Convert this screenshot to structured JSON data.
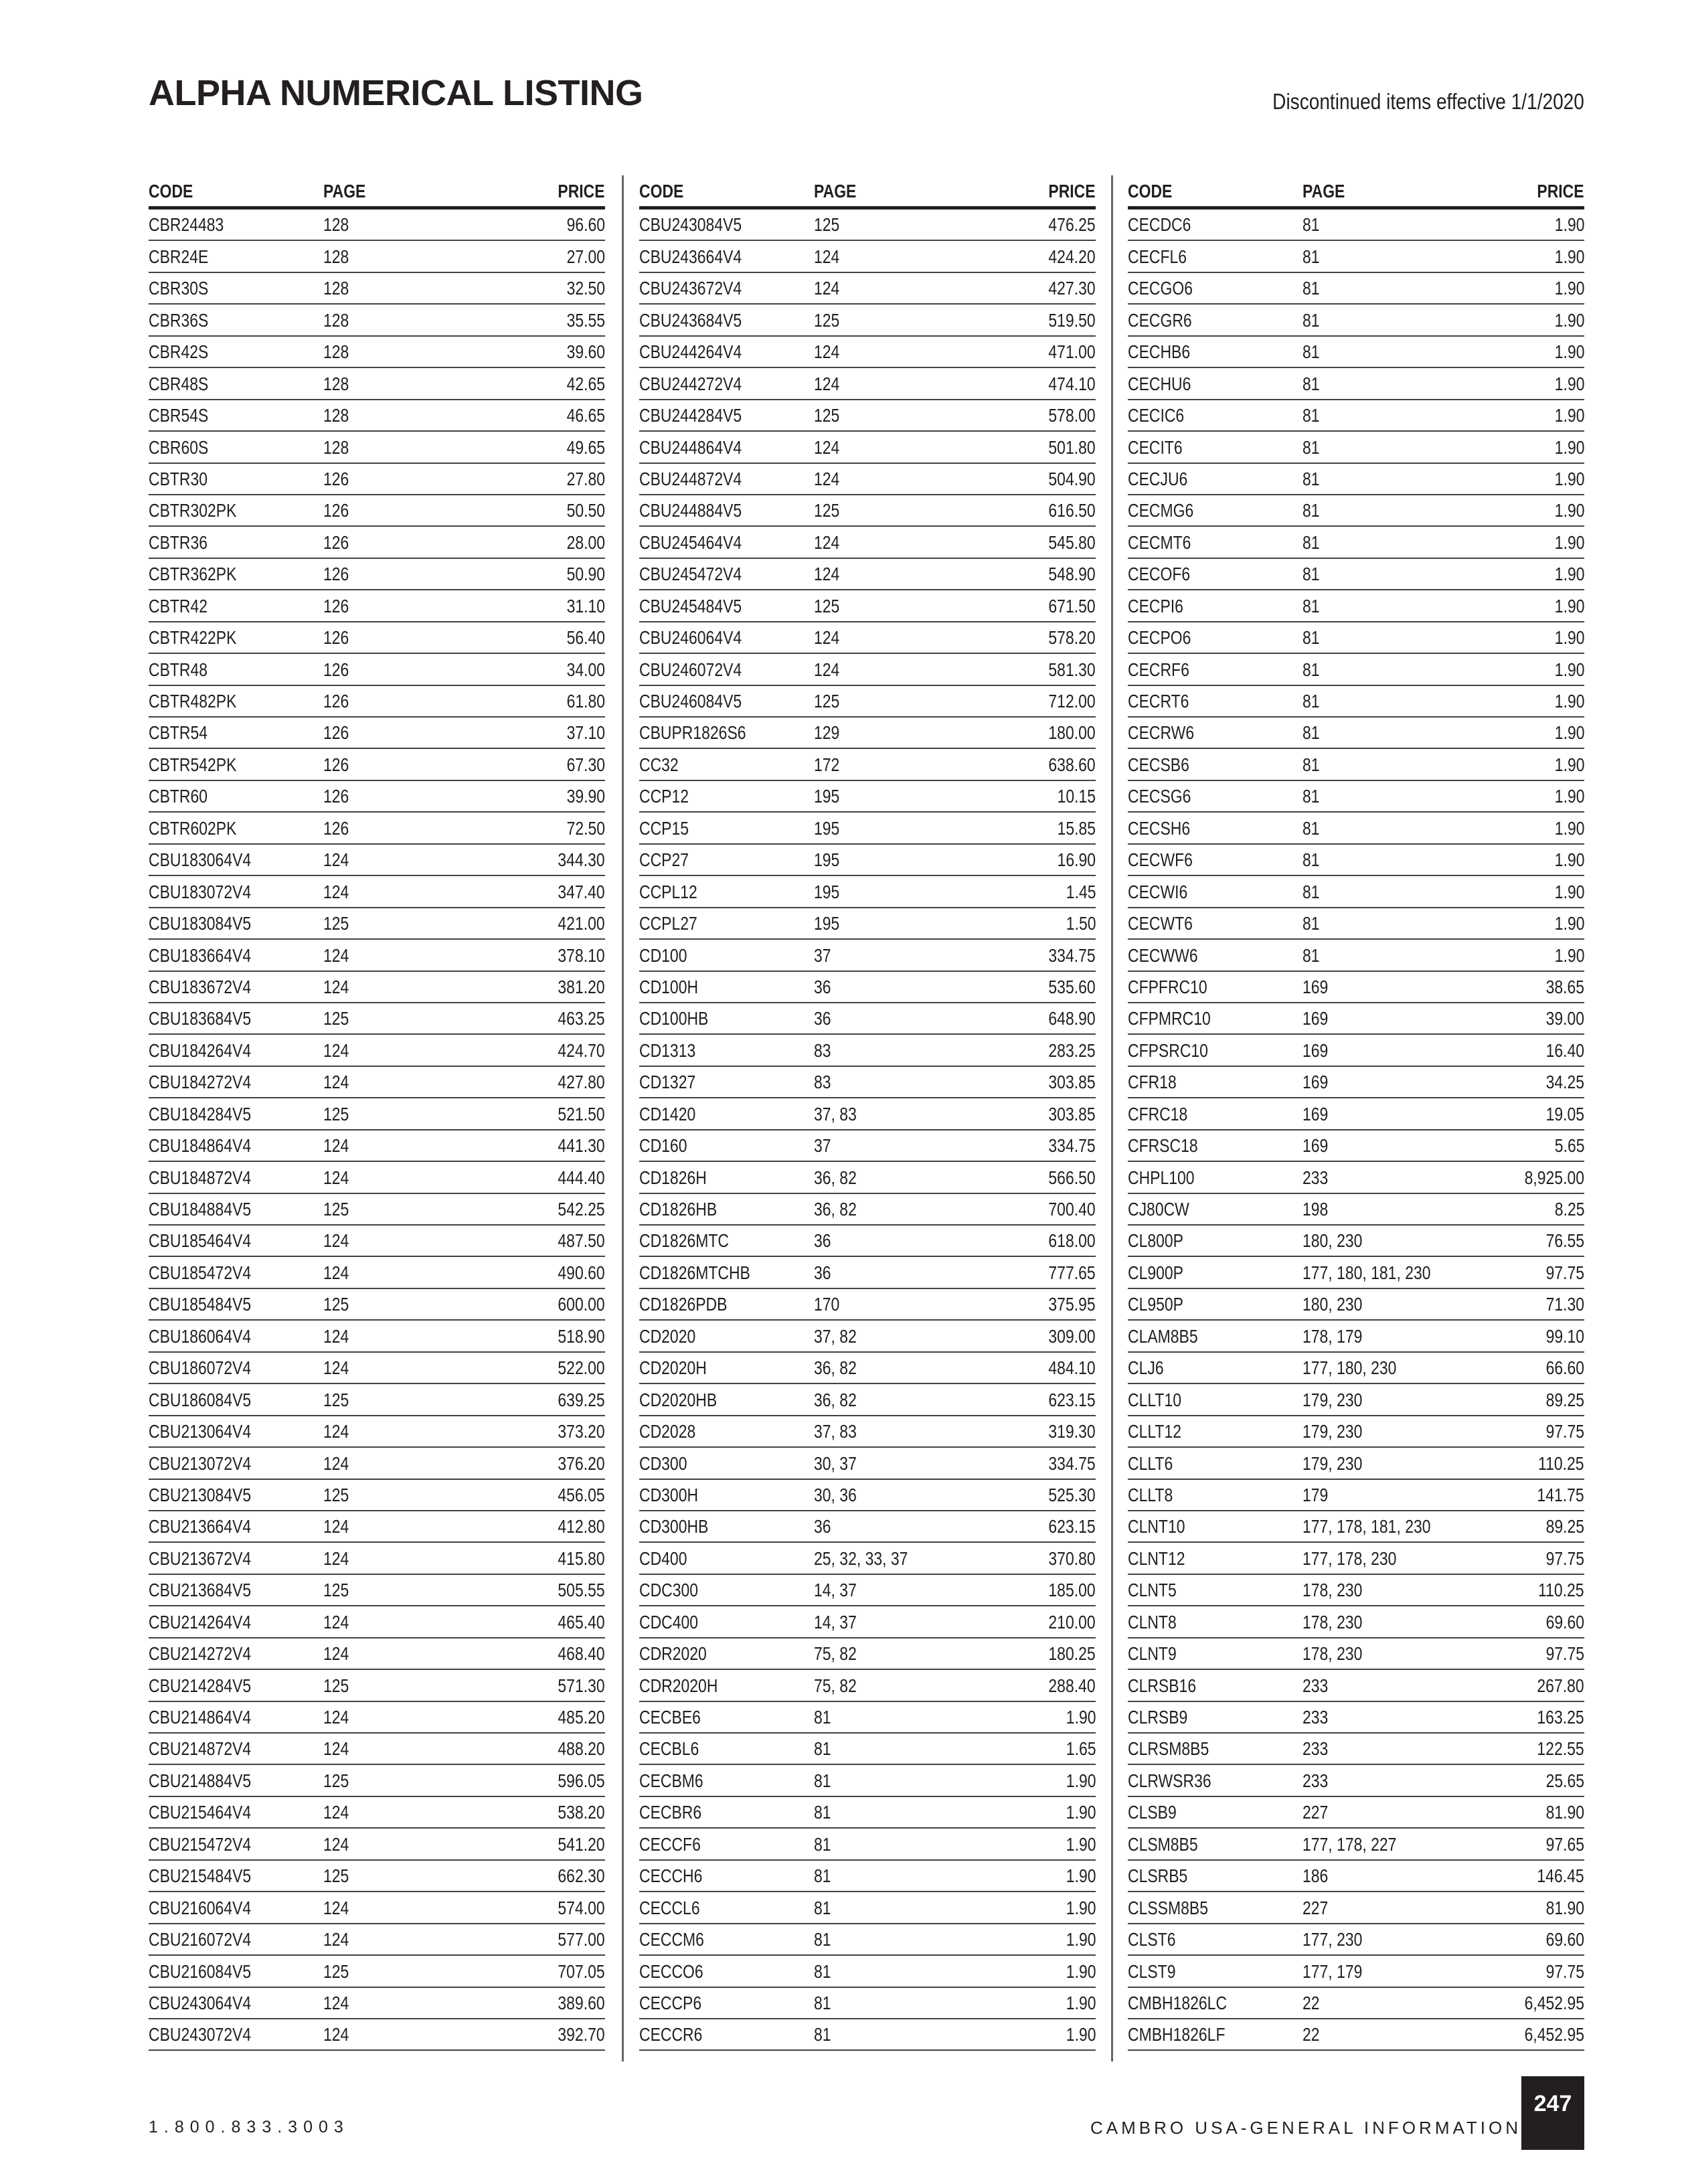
{
  "header": {
    "title": "ALPHA NUMERICAL LISTING",
    "subtitle": "Discontinued items effective 1/1/2020"
  },
  "table_headers": {
    "code": "CODE",
    "page": "PAGE",
    "price": "PRICE"
  },
  "columns": [
    [
      [
        "CBR24483",
        "128",
        "96.60"
      ],
      [
        "CBR24E",
        "128",
        "27.00"
      ],
      [
        "CBR30S",
        "128",
        "32.50"
      ],
      [
        "CBR36S",
        "128",
        "35.55"
      ],
      [
        "CBR42S",
        "128",
        "39.60"
      ],
      [
        "CBR48S",
        "128",
        "42.65"
      ],
      [
        "CBR54S",
        "128",
        "46.65"
      ],
      [
        "CBR60S",
        "128",
        "49.65"
      ],
      [
        "CBTR30",
        "126",
        "27.80"
      ],
      [
        "CBTR302PK",
        "126",
        "50.50"
      ],
      [
        "CBTR36",
        "126",
        "28.00"
      ],
      [
        "CBTR362PK",
        "126",
        "50.90"
      ],
      [
        "CBTR42",
        "126",
        "31.10"
      ],
      [
        "CBTR422PK",
        "126",
        "56.40"
      ],
      [
        "CBTR48",
        "126",
        "34.00"
      ],
      [
        "CBTR482PK",
        "126",
        "61.80"
      ],
      [
        "CBTR54",
        "126",
        "37.10"
      ],
      [
        "CBTR542PK",
        "126",
        "67.30"
      ],
      [
        "CBTR60",
        "126",
        "39.90"
      ],
      [
        "CBTR602PK",
        "126",
        "72.50"
      ],
      [
        "CBU183064V4",
        "124",
        "344.30"
      ],
      [
        "CBU183072V4",
        "124",
        "347.40"
      ],
      [
        "CBU183084V5",
        "125",
        "421.00"
      ],
      [
        "CBU183664V4",
        "124",
        "378.10"
      ],
      [
        "CBU183672V4",
        "124",
        "381.20"
      ],
      [
        "CBU183684V5",
        "125",
        "463.25"
      ],
      [
        "CBU184264V4",
        "124",
        "424.70"
      ],
      [
        "CBU184272V4",
        "124",
        "427.80"
      ],
      [
        "CBU184284V5",
        "125",
        "521.50"
      ],
      [
        "CBU184864V4",
        "124",
        "441.30"
      ],
      [
        "CBU184872V4",
        "124",
        "444.40"
      ],
      [
        "CBU184884V5",
        "125",
        "542.25"
      ],
      [
        "CBU185464V4",
        "124",
        "487.50"
      ],
      [
        "CBU185472V4",
        "124",
        "490.60"
      ],
      [
        "CBU185484V5",
        "125",
        "600.00"
      ],
      [
        "CBU186064V4",
        "124",
        "518.90"
      ],
      [
        "CBU186072V4",
        "124",
        "522.00"
      ],
      [
        "CBU186084V5",
        "125",
        "639.25"
      ],
      [
        "CBU213064V4",
        "124",
        "373.20"
      ],
      [
        "CBU213072V4",
        "124",
        "376.20"
      ],
      [
        "CBU213084V5",
        "125",
        "456.05"
      ],
      [
        "CBU213664V4",
        "124",
        "412.80"
      ],
      [
        "CBU213672V4",
        "124",
        "415.80"
      ],
      [
        "CBU213684V5",
        "125",
        "505.55"
      ],
      [
        "CBU214264V4",
        "124",
        "465.40"
      ],
      [
        "CBU214272V4",
        "124",
        "468.40"
      ],
      [
        "CBU214284V5",
        "125",
        "571.30"
      ],
      [
        "CBU214864V4",
        "124",
        "485.20"
      ],
      [
        "CBU214872V4",
        "124",
        "488.20"
      ],
      [
        "CBU214884V5",
        "125",
        "596.05"
      ],
      [
        "CBU215464V4",
        "124",
        "538.20"
      ],
      [
        "CBU215472V4",
        "124",
        "541.20"
      ],
      [
        "CBU215484V5",
        "125",
        "662.30"
      ],
      [
        "CBU216064V4",
        "124",
        "574.00"
      ],
      [
        "CBU216072V4",
        "124",
        "577.00"
      ],
      [
        "CBU216084V5",
        "125",
        "707.05"
      ],
      [
        "CBU243064V4",
        "124",
        "389.60"
      ],
      [
        "CBU243072V4",
        "124",
        "392.70"
      ]
    ],
    [
      [
        "CBU243084V5",
        "125",
        "476.25"
      ],
      [
        "CBU243664V4",
        "124",
        "424.20"
      ],
      [
        "CBU243672V4",
        "124",
        "427.30"
      ],
      [
        "CBU243684V5",
        "125",
        "519.50"
      ],
      [
        "CBU244264V4",
        "124",
        "471.00"
      ],
      [
        "CBU244272V4",
        "124",
        "474.10"
      ],
      [
        "CBU244284V5",
        "125",
        "578.00"
      ],
      [
        "CBU244864V4",
        "124",
        "501.80"
      ],
      [
        "CBU244872V4",
        "124",
        "504.90"
      ],
      [
        "CBU244884V5",
        "125",
        "616.50"
      ],
      [
        "CBU245464V4",
        "124",
        "545.80"
      ],
      [
        "CBU245472V4",
        "124",
        "548.90"
      ],
      [
        "CBU245484V5",
        "125",
        "671.50"
      ],
      [
        "CBU246064V4",
        "124",
        "578.20"
      ],
      [
        "CBU246072V4",
        "124",
        "581.30"
      ],
      [
        "CBU246084V5",
        "125",
        "712.00"
      ],
      [
        "CBUPR1826S6",
        "129",
        "180.00"
      ],
      [
        "CC32",
        "172",
        "638.60"
      ],
      [
        "CCP12",
        "195",
        "10.15"
      ],
      [
        "CCP15",
        "195",
        "15.85"
      ],
      [
        "CCP27",
        "195",
        "16.90"
      ],
      [
        "CCPL12",
        "195",
        "1.45"
      ],
      [
        "CCPL27",
        "195",
        "1.50"
      ],
      [
        "CD100",
        "37",
        "334.75"
      ],
      [
        "CD100H",
        "36",
        "535.60"
      ],
      [
        "CD100HB",
        "36",
        "648.90"
      ],
      [
        "CD1313",
        "83",
        "283.25"
      ],
      [
        "CD1327",
        "83",
        "303.85"
      ],
      [
        "CD1420",
        "37, 83",
        "303.85"
      ],
      [
        "CD160",
        "37",
        "334.75"
      ],
      [
        "CD1826H",
        "36, 82",
        "566.50"
      ],
      [
        "CD1826HB",
        "36, 82",
        "700.40"
      ],
      [
        "CD1826MTC",
        "36",
        "618.00"
      ],
      [
        "CD1826MTCHB",
        "36",
        "777.65"
      ],
      [
        "CD1826PDB",
        "170",
        "375.95"
      ],
      [
        "CD2020",
        "37, 82",
        "309.00"
      ],
      [
        "CD2020H",
        "36, 82",
        "484.10"
      ],
      [
        "CD2020HB",
        "36, 82",
        "623.15"
      ],
      [
        "CD2028",
        "37, 83",
        "319.30"
      ],
      [
        "CD300",
        "30, 37",
        "334.75"
      ],
      [
        "CD300H",
        "30, 36",
        "525.30"
      ],
      [
        "CD300HB",
        "36",
        "623.15"
      ],
      [
        "CD400",
        "25, 32, 33, 37",
        "370.80"
      ],
      [
        "CDC300",
        "14, 37",
        "185.00"
      ],
      [
        "CDC400",
        "14, 37",
        "210.00"
      ],
      [
        "CDR2020",
        "75, 82",
        "180.25"
      ],
      [
        "CDR2020H",
        "75, 82",
        "288.40"
      ],
      [
        "CECBE6",
        "81",
        "1.90"
      ],
      [
        "CECBL6",
        "81",
        "1.65"
      ],
      [
        "CECBM6",
        "81",
        "1.90"
      ],
      [
        "CECBR6",
        "81",
        "1.90"
      ],
      [
        "CECCF6",
        "81",
        "1.90"
      ],
      [
        "CECCH6",
        "81",
        "1.90"
      ],
      [
        "CECCL6",
        "81",
        "1.90"
      ],
      [
        "CECCM6",
        "81",
        "1.90"
      ],
      [
        "CECCO6",
        "81",
        "1.90"
      ],
      [
        "CECCP6",
        "81",
        "1.90"
      ],
      [
        "CECCR6",
        "81",
        "1.90"
      ]
    ],
    [
      [
        "CECDC6",
        "81",
        "1.90"
      ],
      [
        "CECFL6",
        "81",
        "1.90"
      ],
      [
        "CECGO6",
        "81",
        "1.90"
      ],
      [
        "CECGR6",
        "81",
        "1.90"
      ],
      [
        "CECHB6",
        "81",
        "1.90"
      ],
      [
        "CECHU6",
        "81",
        "1.90"
      ],
      [
        "CECIC6",
        "81",
        "1.90"
      ],
      [
        "CECIT6",
        "81",
        "1.90"
      ],
      [
        "CECJU6",
        "81",
        "1.90"
      ],
      [
        "CECMG6",
        "81",
        "1.90"
      ],
      [
        "CECMT6",
        "81",
        "1.90"
      ],
      [
        "CECOF6",
        "81",
        "1.90"
      ],
      [
        "CECPI6",
        "81",
        "1.90"
      ],
      [
        "CECPO6",
        "81",
        "1.90"
      ],
      [
        "CECRF6",
        "81",
        "1.90"
      ],
      [
        "CECRT6",
        "81",
        "1.90"
      ],
      [
        "CECRW6",
        "81",
        "1.90"
      ],
      [
        "CECSB6",
        "81",
        "1.90"
      ],
      [
        "CECSG6",
        "81",
        "1.90"
      ],
      [
        "CECSH6",
        "81",
        "1.90"
      ],
      [
        "CECWF6",
        "81",
        "1.90"
      ],
      [
        "CECWI6",
        "81",
        "1.90"
      ],
      [
        "CECWT6",
        "81",
        "1.90"
      ],
      [
        "CECWW6",
        "81",
        "1.90"
      ],
      [
        "CFPFRC10",
        "169",
        "38.65"
      ],
      [
        "CFPMRC10",
        "169",
        "39.00"
      ],
      [
        "CFPSRC10",
        "169",
        "16.40"
      ],
      [
        "CFR18",
        "169",
        "34.25"
      ],
      [
        "CFRC18",
        "169",
        "19.05"
      ],
      [
        "CFRSC18",
        "169",
        "5.65"
      ],
      [
        "CHPL100",
        "233",
        "8,925.00"
      ],
      [
        "CJ80CW",
        "198",
        "8.25"
      ],
      [
        "CL800P",
        "180, 230",
        "76.55"
      ],
      [
        "CL900P",
        "177, 180, 181, 230",
        "97.75"
      ],
      [
        "CL950P",
        "180, 230",
        "71.30"
      ],
      [
        "CLAM8B5",
        "178, 179",
        "99.10"
      ],
      [
        "CLJ6",
        "177, 180, 230",
        "66.60"
      ],
      [
        "CLLT10",
        "179, 230",
        "89.25"
      ],
      [
        "CLLT12",
        "179, 230",
        "97.75"
      ],
      [
        "CLLT6",
        "179, 230",
        "110.25"
      ],
      [
        "CLLT8",
        "179",
        "141.75"
      ],
      [
        "CLNT10",
        "177, 178, 181, 230",
        "89.25"
      ],
      [
        "CLNT12",
        "177, 178, 230",
        "97.75"
      ],
      [
        "CLNT5",
        "178, 230",
        "110.25"
      ],
      [
        "CLNT8",
        "178, 230",
        "69.60"
      ],
      [
        "CLNT9",
        "178, 230",
        "97.75"
      ],
      [
        "CLRSB16",
        "233",
        "267.80"
      ],
      [
        "CLRSB9",
        "233",
        "163.25"
      ],
      [
        "CLRSM8B5",
        "233",
        "122.55"
      ],
      [
        "CLRWSR36",
        "233",
        "25.65"
      ],
      [
        "CLSB9",
        "227",
        "81.90"
      ],
      [
        "CLSM8B5",
        "177, 178, 227",
        "97.65"
      ],
      [
        "CLSRB5",
        "186",
        "146.45"
      ],
      [
        "CLSSM8B5",
        "227",
        "81.90"
      ],
      [
        "CLST6",
        "177, 230",
        "69.60"
      ],
      [
        "CLST9",
        "177, 179",
        "97.75"
      ],
      [
        "CMBH1826LC",
        "22",
        "6,452.95"
      ],
      [
        "CMBH1826LF",
        "22",
        "6,452.95"
      ]
    ]
  ],
  "footer": {
    "phone": "1.800.833.3003",
    "brand": "CAMBRO USA-GENERAL INFORMATION",
    "page_number": "247"
  }
}
